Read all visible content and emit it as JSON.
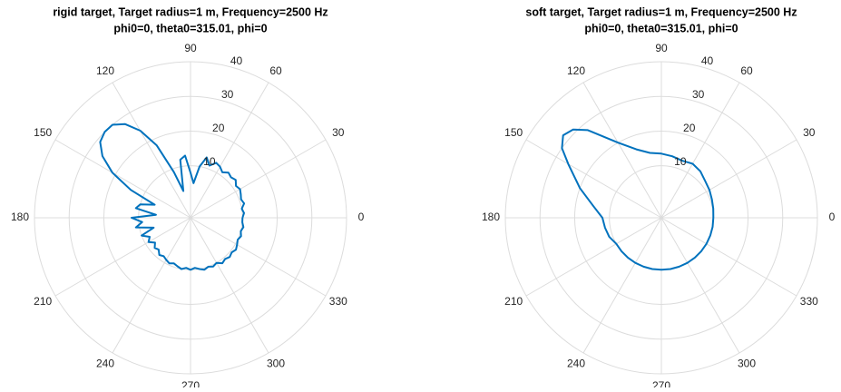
{
  "chart_data": [
    {
      "type": "polar",
      "title": "rigid target, Target radius=1 m, Frequency=2500 Hz",
      "subtitle": "phi0=0, theta0=315.01, phi=0",
      "color": "#0072bd",
      "rlim": [
        -5,
        40
      ],
      "rticks": [
        10,
        20,
        30,
        40
      ],
      "thetaticks": [
        0,
        30,
        60,
        90,
        120,
        150,
        180,
        210,
        240,
        270,
        300,
        330
      ],
      "theta": [
        0,
        5,
        10,
        15,
        20,
        25,
        30,
        35,
        40,
        45,
        50,
        55,
        60,
        65,
        70,
        75,
        80,
        85,
        90,
        95,
        100,
        105,
        110,
        115,
        120,
        125,
        130,
        135,
        140,
        145,
        150,
        155,
        160,
        165,
        170,
        175,
        180,
        185,
        190,
        195,
        200,
        205,
        210,
        215,
        220,
        225,
        230,
        235,
        240,
        245,
        250,
        255,
        260,
        265,
        270,
        275,
        280,
        285,
        290,
        295,
        300,
        305,
        310,
        315,
        320,
        325,
        330,
        335,
        340,
        345,
        350,
        355,
        360
      ],
      "values": [
        10,
        10.5,
        10,
        11,
        10.5,
        11,
        11.5,
        11,
        12,
        11.5,
        12,
        11,
        12,
        12.5,
        11,
        13,
        10,
        5,
        8,
        13,
        12,
        3,
        9,
        18,
        24,
        28,
        30,
        30,
        29,
        26,
        21,
        14,
        6,
        10,
        11,
        5,
        12,
        9,
        11,
        6,
        10,
        8,
        9,
        7.5,
        8.5,
        8,
        9,
        8.5,
        9,
        9.5,
        9,
        9.5,
        10,
        9.5,
        10,
        9.5,
        10,
        10.5,
        10,
        10.5,
        10,
        11,
        10.5,
        11,
        10.5,
        11,
        10.5,
        10,
        10.5,
        10,
        10.5,
        10,
        10
      ]
    },
    {
      "type": "polar",
      "title": "soft target, Target radius=1 m, Frequency=2500 Hz",
      "subtitle": "phi0=0, theta0=315.01, phi=0",
      "color": "#0072bd",
      "rlim": [
        -5,
        40
      ],
      "rticks": [
        10,
        20,
        30,
        40
      ],
      "thetaticks": [
        0,
        30,
        60,
        90,
        120,
        150,
        180,
        210,
        240,
        270,
        300,
        330
      ],
      "theta": [
        0,
        10,
        20,
        30,
        40,
        50,
        60,
        70,
        80,
        90,
        100,
        110,
        120,
        130,
        135,
        140,
        145,
        150,
        160,
        170,
        180,
        190,
        200,
        210,
        220,
        230,
        240,
        250,
        260,
        270,
        280,
        290,
        300,
        310,
        320,
        330,
        340,
        350,
        360
      ],
      "values": [
        10,
        10.2,
        10.5,
        11,
        11.5,
        12.5,
        13,
        12.5,
        13,
        13.5,
        14,
        16,
        20,
        28,
        31,
        32,
        30,
        26,
        20,
        15,
        12,
        11.5,
        11,
        10,
        10,
        10,
        10,
        10,
        10,
        10,
        10,
        10,
        10,
        10,
        10,
        10,
        10,
        10,
        10
      ]
    }
  ]
}
